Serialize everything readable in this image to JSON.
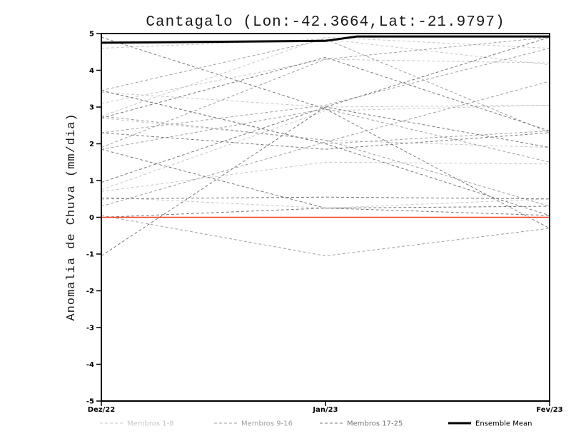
{
  "chart_data": {
    "type": "line",
    "title": "Cantagalo (Lon:-42.3664,Lat:-21.9797)",
    "ylabel": "Anomalia de Chuva (mm/dia)",
    "x": [
      "Dez/22",
      "Jan/23",
      "Fev/23"
    ],
    "ylim": [
      -5,
      5
    ],
    "yticks": [
      5,
      4,
      3,
      2,
      1,
      0,
      -1,
      -2,
      -3,
      -4,
      -5
    ],
    "grid": false,
    "zero_line": {
      "color": "#f03b20",
      "values": [
        0,
        0,
        0
      ]
    },
    "ensemble_mean": {
      "label": "Ensemble Mean",
      "color": "#000000",
      "points": [
        [
          0,
          4.75
        ],
        [
          0.5,
          4.8
        ],
        [
          0.57,
          4.92
        ],
        [
          1,
          4.92
        ]
      ]
    },
    "member_groups": [
      {
        "label": "Membros 1-8",
        "color": "#c8c8c8",
        "series": [
          [
            3.4,
            3.0,
            3.05
          ],
          [
            2.75,
            4.9,
            4.6
          ],
          [
            0.75,
            2.9,
            3.05
          ],
          [
            0.7,
            1.5,
            1.45
          ],
          [
            2.7,
            2.1,
            1.9
          ],
          [
            3.1,
            4.3,
            4.2
          ],
          [
            0.55,
            0.25,
            0.5
          ],
          [
            4.6,
            4.85,
            4.15
          ]
        ]
      },
      {
        "label": "Membros 9-16",
        "color": "#a0a0a0",
        "series": [
          [
            3.45,
            2.0,
            2.35
          ],
          [
            2.3,
            3.05,
            4.6
          ],
          [
            1.9,
            4.3,
            4.9
          ],
          [
            0.3,
            2.05,
            3.7
          ],
          [
            0.05,
            -1.05,
            -0.3
          ],
          [
            2.75,
            2.1,
            0.3
          ],
          [
            1.85,
            2.95,
            1.5
          ],
          [
            3.45,
            4.85,
            2.3
          ]
        ]
      },
      {
        "label": "Membros 17-25",
        "color": "#787878",
        "series": [
          [
            -1.05,
            3.0,
            4.9
          ],
          [
            2.3,
            1.85,
            2.3
          ],
          [
            3.45,
            2.0,
            0.05
          ],
          [
            0.0,
            0.25,
            0.05
          ],
          [
            0.5,
            0.55,
            0.5
          ],
          [
            2.7,
            4.35,
            2.35
          ],
          [
            4.9,
            2.95,
            -0.3
          ],
          [
            0.95,
            3.0,
            1.9
          ],
          [
            1.85,
            0.25,
            0.3
          ]
        ]
      }
    ],
    "legend": [
      {
        "label": "Membros 1-8",
        "color": "#c8c8c8",
        "dash": true,
        "width": 1
      },
      {
        "label": "Membros 9-16",
        "color": "#a0a0a0",
        "dash": true,
        "width": 1
      },
      {
        "label": "Membros 17-25",
        "color": "#787878",
        "dash": true,
        "width": 1
      },
      {
        "label": "Ensemble Mean",
        "color": "#000000",
        "dash": false,
        "width": 3
      }
    ],
    "legend_position": "bottom"
  }
}
